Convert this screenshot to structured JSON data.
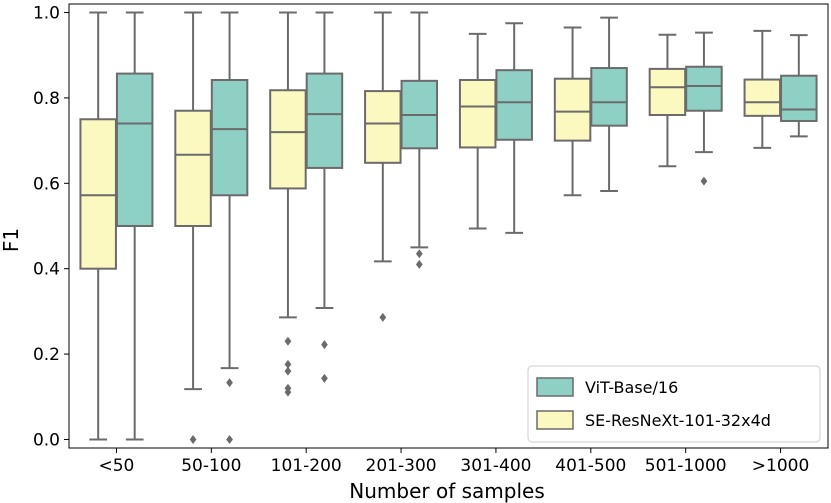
{
  "chart_data": {
    "type": "box",
    "xlabel": "Number of samples",
    "ylabel": "F1",
    "ylim": [
      -0.02,
      1.02
    ],
    "yticks": [
      0.0,
      0.2,
      0.4,
      0.6,
      0.8,
      1.0
    ],
    "ytick_labels": [
      "0.0",
      "0.2",
      "0.4",
      "0.6",
      "0.8",
      "1.0"
    ],
    "categories": [
      "<50",
      "50-100",
      "101-200",
      "201-300",
      "301-400",
      "401-500",
      "501-1000",
      ">1000"
    ],
    "legend_position": "lower-right",
    "series": [
      {
        "name": "SE-ResNeXt-101-32x4d",
        "color": "#fbf8c0",
        "boxes": [
          {
            "whislo": 0.0,
            "q1": 0.4,
            "med": 0.572,
            "q3": 0.75,
            "whishi": 1.0,
            "fliers": []
          },
          {
            "whislo": 0.118,
            "q1": 0.5,
            "med": 0.667,
            "q3": 0.77,
            "whishi": 1.0,
            "fliers": [
              0.0
            ]
          },
          {
            "whislo": 0.286,
            "q1": 0.588,
            "med": 0.72,
            "q3": 0.818,
            "whishi": 1.0,
            "fliers": [
              0.23,
              0.176,
              0.16,
              0.12,
              0.111
            ]
          },
          {
            "whislo": 0.417,
            "q1": 0.648,
            "med": 0.74,
            "q3": 0.816,
            "whishi": 1.0,
            "fliers": [
              0.286
            ]
          },
          {
            "whislo": 0.494,
            "q1": 0.684,
            "med": 0.78,
            "q3": 0.842,
            "whishi": 0.95,
            "fliers": []
          },
          {
            "whislo": 0.572,
            "q1": 0.7,
            "med": 0.768,
            "q3": 0.845,
            "whishi": 0.965,
            "fliers": []
          },
          {
            "whislo": 0.64,
            "q1": 0.76,
            "med": 0.825,
            "q3": 0.868,
            "whishi": 0.948,
            "fliers": []
          },
          {
            "whislo": 0.683,
            "q1": 0.758,
            "med": 0.79,
            "q3": 0.843,
            "whishi": 0.957,
            "fliers": []
          }
        ]
      },
      {
        "name": "ViT-Base/16",
        "color": "#8fd0c4",
        "boxes": [
          {
            "whislo": 0.0,
            "q1": 0.5,
            "med": 0.74,
            "q3": 0.857,
            "whishi": 1.0,
            "fliers": []
          },
          {
            "whislo": 0.167,
            "q1": 0.572,
            "med": 0.727,
            "q3": 0.842,
            "whishi": 1.0,
            "fliers": [
              0.133,
              0.0
            ]
          },
          {
            "whislo": 0.308,
            "q1": 0.636,
            "med": 0.762,
            "q3": 0.857,
            "whishi": 1.0,
            "fliers": [
              0.222,
              0.143
            ]
          },
          {
            "whislo": 0.45,
            "q1": 0.682,
            "med": 0.76,
            "q3": 0.84,
            "whishi": 1.0,
            "fliers": [
              0.435,
              0.41
            ]
          },
          {
            "whislo": 0.484,
            "q1": 0.702,
            "med": 0.79,
            "q3": 0.865,
            "whishi": 0.975,
            "fliers": []
          },
          {
            "whislo": 0.582,
            "q1": 0.735,
            "med": 0.79,
            "q3": 0.87,
            "whishi": 0.988,
            "fliers": []
          },
          {
            "whislo": 0.673,
            "q1": 0.77,
            "med": 0.828,
            "q3": 0.873,
            "whishi": 0.953,
            "fliers": [
              0.605
            ]
          },
          {
            "whislo": 0.71,
            "q1": 0.746,
            "med": 0.773,
            "q3": 0.852,
            "whishi": 0.947,
            "fliers": []
          }
        ]
      }
    ],
    "legend": [
      {
        "label": "ViT-Base/16",
        "color": "#8fd0c4"
      },
      {
        "label": "SE-ResNeXt-101-32x4d",
        "color": "#fbf8c0"
      }
    ],
    "line_color": "#6b6b6b",
    "flier_color": "#6b6b6b"
  }
}
